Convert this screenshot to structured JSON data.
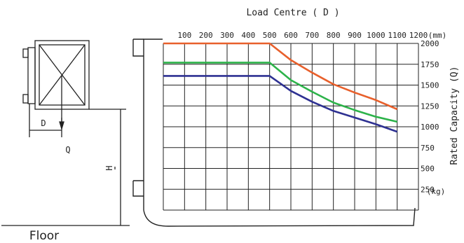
{
  "chart_data": {
    "type": "line",
    "title": "Load Centre ( D )",
    "xlabel_unit": "(mm)",
    "ylabel": "Rated Capacity (Q)",
    "yunit": "(kg)",
    "x_ticks": [
      100,
      200,
      300,
      400,
      500,
      600,
      700,
      800,
      900,
      1000,
      1100,
      1200
    ],
    "y_ticks": [
      2000,
      1750,
      1500,
      1250,
      1000,
      750,
      500,
      250
    ],
    "xlim": [
      0,
      1200
    ],
    "ylim": [
      0,
      2000
    ],
    "grid": true,
    "series": [
      {
        "color": "#e8602c",
        "x": [
          0,
          500,
          600,
          700,
          800,
          900,
          1000,
          1100
        ],
        "y": [
          2000,
          2000,
          1800,
          1650,
          1510,
          1410,
          1320,
          1210
        ]
      },
      {
        "color": "#2db34a",
        "x": [
          0,
          500,
          600,
          700,
          800,
          900,
          1000,
          1100
        ],
        "y": [
          1770,
          1770,
          1560,
          1420,
          1290,
          1200,
          1120,
          1060
        ]
      },
      {
        "color": "#2e3192",
        "x": [
          0,
          500,
          600,
          700,
          800,
          900,
          1000,
          1100
        ],
        "y": [
          1610,
          1610,
          1430,
          1300,
          1190,
          1110,
          1030,
          940
        ]
      }
    ]
  },
  "diagram": {
    "d_label": "D",
    "q_label": "Q",
    "h_label": "H",
    "floor_label": "Floor"
  }
}
